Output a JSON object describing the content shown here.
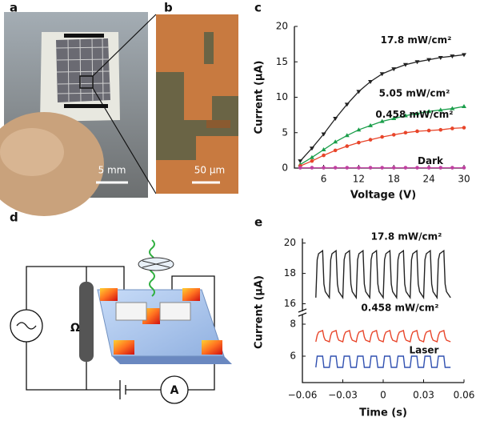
{
  "panel_labels": [
    "a",
    "b",
    "c",
    "d",
    "e"
  ],
  "photo_a": {
    "scale_bar": "5 mm"
  },
  "photo_b": {
    "scale_bar": "50 μm"
  },
  "circuit": {
    "resistor": "Ω",
    "ammeter": "A"
  },
  "chart_data": [
    {
      "type": "line",
      "xlabel": "Voltage (V)",
      "ylabel": "Current (μA)",
      "xlim": [
        1,
        30
      ],
      "xticks": [
        6,
        12,
        18,
        24,
        30
      ],
      "ylim": [
        0,
        20
      ],
      "yticks": [
        0,
        5,
        10,
        15,
        20
      ],
      "x": [
        2,
        4,
        6,
        8,
        10,
        12,
        14,
        16,
        18,
        20,
        22,
        24,
        26,
        28,
        30
      ],
      "series": [
        {
          "name": "17.8 mW/cm²",
          "color": "#222222",
          "marker": "triangle-down",
          "values": [
            1.0,
            2.8,
            4.8,
            7.0,
            9.0,
            10.8,
            12.2,
            13.3,
            14.0,
            14.6,
            15.0,
            15.3,
            15.6,
            15.8,
            16.0
          ]
        },
        {
          "name": "5.05 mW/cm²",
          "color": "#1a9e4a",
          "marker": "triangle-up",
          "values": [
            0.5,
            1.5,
            2.6,
            3.7,
            4.6,
            5.4,
            6.0,
            6.6,
            7.0,
            7.4,
            7.7,
            8.0,
            8.2,
            8.4,
            8.7
          ]
        },
        {
          "name": "0.458 mW/cm²",
          "color": "#e8452a",
          "marker": "circle",
          "values": [
            0.3,
            1.0,
            1.8,
            2.5,
            3.1,
            3.6,
            4.0,
            4.4,
            4.7,
            5.0,
            5.2,
            5.3,
            5.4,
            5.6,
            5.7
          ]
        },
        {
          "name": "Dark",
          "color": "#c040a0",
          "marker": "circle",
          "values": [
            0.05,
            0.05,
            0.05,
            0.05,
            0.05,
            0.05,
            0.05,
            0.05,
            0.05,
            0.05,
            0.05,
            0.05,
            0.05,
            0.05,
            0.05
          ]
        }
      ]
    },
    {
      "type": "line",
      "xlabel": "Time (s)",
      "ylabel": "Current (μA)",
      "xlim": [
        -0.06,
        0.06
      ],
      "xticks": [
        {
          "value": -0.06,
          "label": "−0.06"
        },
        {
          "value": -0.03,
          "label": "−0.03"
        },
        0,
        0.03,
        0.06
      ],
      "y_segments": [
        {
          "ylim": [
            15.5,
            20.3
          ],
          "yticks": [
            16,
            18,
            20
          ]
        },
        {
          "ylim": [
            4.5,
            8.6
          ],
          "yticks": [
            6,
            8
          ]
        }
      ],
      "x": [
        -0.05,
        -0.049,
        -0.048,
        -0.045,
        -0.044,
        -0.043,
        -0.04,
        -0.039,
        -0.038,
        -0.035,
        -0.034,
        -0.033,
        -0.03,
        -0.029,
        -0.028,
        -0.025,
        -0.024,
        -0.023,
        -0.02,
        -0.019,
        -0.018,
        -0.015,
        -0.014,
        -0.013,
        -0.01,
        -0.009,
        -0.008,
        -0.005,
        -0.004,
        -0.003,
        0,
        0.001,
        0.002,
        0.005,
        0.006,
        0.007,
        0.01,
        0.011,
        0.012,
        0.015,
        0.016,
        0.017,
        0.02,
        0.021,
        0.022,
        0.025,
        0.026,
        0.027,
        0.03,
        0.031,
        0.032,
        0.035,
        0.036,
        0.037,
        0.04,
        0.041,
        0.042,
        0.045,
        0.046,
        0.047,
        0.05
      ],
      "series": [
        {
          "name": "17.8 mW/cm²",
          "color": "#222222",
          "segment": 0,
          "values": [
            16.4,
            18.9,
            19.3,
            19.5,
            17.3,
            16.8,
            16.4,
            18.9,
            19.3,
            19.5,
            17.3,
            16.8,
            16.4,
            18.9,
            19.3,
            19.5,
            17.3,
            16.8,
            16.4,
            18.9,
            19.3,
            19.5,
            17.3,
            16.8,
            16.4,
            18.9,
            19.3,
            19.5,
            17.3,
            16.8,
            16.4,
            18.9,
            19.3,
            19.5,
            17.3,
            16.8,
            16.4,
            18.9,
            19.3,
            19.5,
            17.3,
            16.8,
            16.4,
            18.9,
            19.3,
            19.5,
            17.3,
            16.8,
            16.4,
            18.9,
            19.3,
            19.5,
            17.3,
            16.8,
            16.4,
            18.9,
            19.3,
            19.5,
            17.3,
            16.8,
            16.4
          ]
        },
        {
          "name": "0.458 mW/cm²",
          "color": "#e8452a",
          "segment": 1,
          "values": [
            6.9,
            7.3,
            7.5,
            7.6,
            7.2,
            7.0,
            6.9,
            7.3,
            7.5,
            7.6,
            7.2,
            7.0,
            6.9,
            7.3,
            7.5,
            7.6,
            7.2,
            7.0,
            6.9,
            7.3,
            7.5,
            7.6,
            7.2,
            7.0,
            6.9,
            7.3,
            7.5,
            7.6,
            7.2,
            7.0,
            6.9,
            7.3,
            7.5,
            7.6,
            7.2,
            7.0,
            6.9,
            7.3,
            7.5,
            7.6,
            7.2,
            7.0,
            6.9,
            7.3,
            7.5,
            7.6,
            7.2,
            7.0,
            6.9,
            7.3,
            7.5,
            7.6,
            7.2,
            7.0,
            6.9,
            7.3,
            7.5,
            7.6,
            7.2,
            7.0,
            6.9
          ]
        },
        {
          "name": "Laser",
          "color": "#3050b0",
          "segment": 1,
          "values": [
            5.3,
            6.0,
            6.0,
            6.0,
            5.3,
            5.3,
            5.3,
            6.0,
            6.0,
            6.0,
            5.3,
            5.3,
            5.3,
            6.0,
            6.0,
            6.0,
            5.3,
            5.3,
            5.3,
            6.0,
            6.0,
            6.0,
            5.3,
            5.3,
            5.3,
            6.0,
            6.0,
            6.0,
            5.3,
            5.3,
            5.3,
            6.0,
            6.0,
            6.0,
            5.3,
            5.3,
            5.3,
            6.0,
            6.0,
            6.0,
            5.3,
            5.3,
            5.3,
            6.0,
            6.0,
            6.0,
            5.3,
            5.3,
            5.3,
            6.0,
            6.0,
            6.0,
            5.3,
            5.3,
            5.3,
            6.0,
            6.0,
            6.0,
            5.3,
            5.3,
            5.3
          ]
        }
      ]
    }
  ]
}
